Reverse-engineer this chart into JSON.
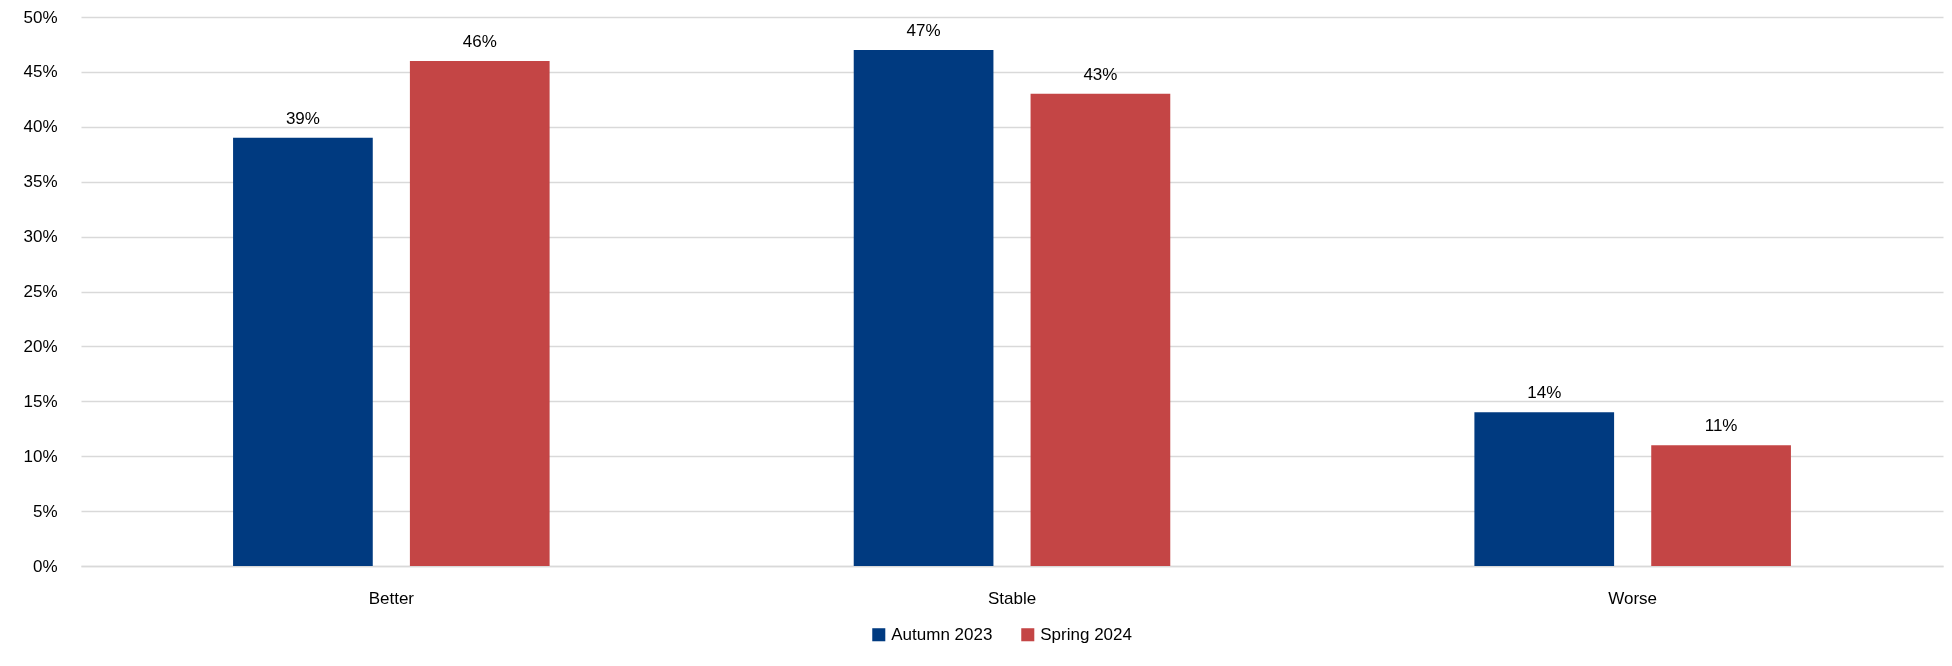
{
  "chart_data": {
    "type": "bar",
    "categories": [
      "Better",
      "Stable",
      "Worse"
    ],
    "series": [
      {
        "name": "Autumn 2023",
        "color": "#003a80",
        "values": [
          39,
          47,
          14
        ],
        "value_labels": [
          "39%",
          "47%",
          "14%"
        ]
      },
      {
        "name": "Spring 2024",
        "color": "#c44545",
        "values": [
          46,
          43,
          11
        ],
        "value_labels": [
          "46%",
          "43%",
          "11%"
        ]
      }
    ],
    "ylim": [
      0,
      50
    ],
    "yticks": [
      {
        "value": 0,
        "label": "0%"
      },
      {
        "value": 5,
        "label": "5%"
      },
      {
        "value": 10,
        "label": "10%"
      },
      {
        "value": 15,
        "label": "15%"
      },
      {
        "value": 20,
        "label": "20%"
      },
      {
        "value": 25,
        "label": "25%"
      },
      {
        "value": 30,
        "label": "30%"
      },
      {
        "value": 35,
        "label": "35%"
      },
      {
        "value": 40,
        "label": "40%"
      },
      {
        "value": 45,
        "label": "45%"
      },
      {
        "value": 50,
        "label": "50%"
      }
    ],
    "grid": "y",
    "legend": "bottom"
  }
}
